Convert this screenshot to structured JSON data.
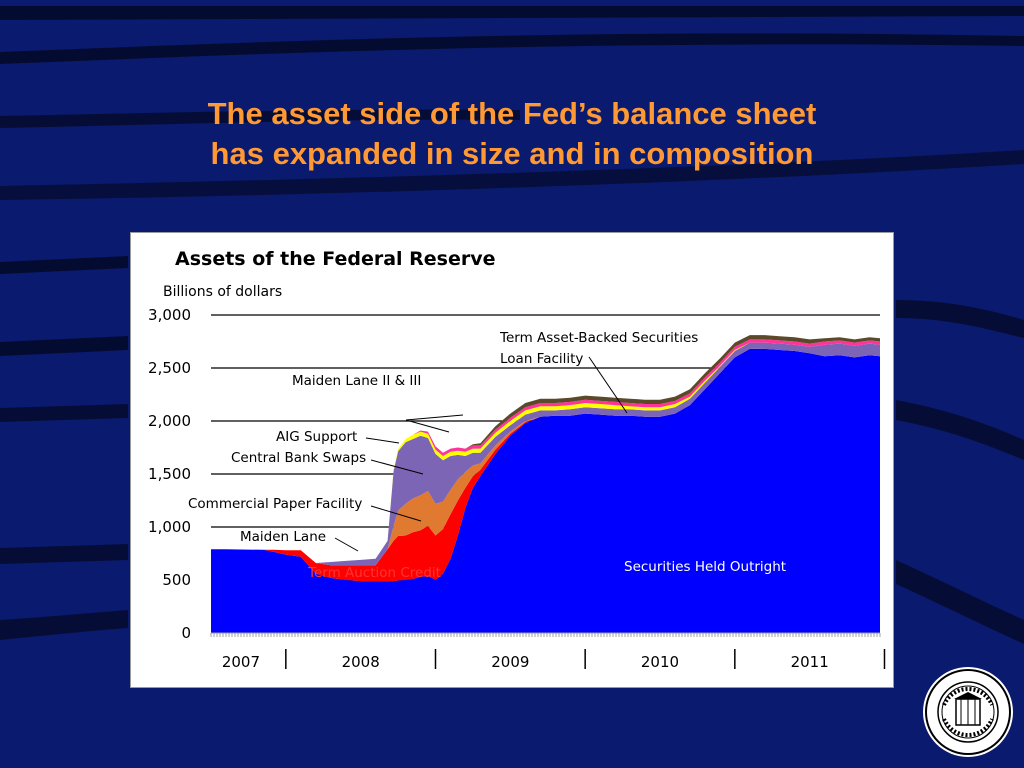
{
  "slide": {
    "title_line1": "The asset side of the Fed’s balance sheet",
    "title_line2": "has expanded in size and in composition"
  },
  "colors": {
    "background": "#0a1a6e",
    "title": "#ff9933",
    "securities": "#0000ff",
    "term_auction": "#ff0000",
    "commercial_paper": "#e07a30",
    "central_bank_swaps": "#7d65b5",
    "aig": "#ffff00",
    "maiden_lane": "#ff3399",
    "talf": "#5a4a2a"
  },
  "chart_data": {
    "type": "area",
    "title": "Assets of the Federal Reserve",
    "ylabel": "Billions of dollars",
    "ylim": [
      0,
      3000
    ],
    "yticks": [
      {
        "value": 0,
        "label": "0"
      },
      {
        "value": 500,
        "label": "500"
      },
      {
        "value": 1000,
        "label": "1,000"
      },
      {
        "value": 1500,
        "label": "1,500"
      },
      {
        "value": 2000,
        "label": "2,000"
      },
      {
        "value": 2500,
        "label": "2,500"
      },
      {
        "value": 3000,
        "label": "3,000"
      }
    ],
    "grid": true,
    "xlim": [
      2007.5,
      2011.97
    ],
    "x_labels": [
      {
        "label": "2007",
        "x": 2007.7
      },
      {
        "label": "2008",
        "x": 2008.5
      },
      {
        "label": "2009",
        "x": 2009.5
      },
      {
        "label": "2010",
        "x": 2010.5
      },
      {
        "label": "2011",
        "x": 2011.5
      }
    ],
    "year_dividers": [
      2008,
      2009,
      2010,
      2011,
      2012
    ],
    "x": [
      2007.5,
      2007.6,
      2007.85,
      2007.92,
      2008.0,
      2008.1,
      2008.2,
      2008.3,
      2008.4,
      2008.5,
      2008.6,
      2008.68,
      2008.72,
      2008.75,
      2008.8,
      2008.85,
      2008.9,
      2008.95,
      2009.0,
      2009.05,
      2009.1,
      2009.15,
      2009.2,
      2009.25,
      2009.3,
      2009.4,
      2009.5,
      2009.6,
      2009.7,
      2009.8,
      2009.9,
      2010.0,
      2010.1,
      2010.2,
      2010.3,
      2010.4,
      2010.5,
      2010.6,
      2010.7,
      2010.8,
      2010.9,
      2011.0,
      2011.1,
      2011.2,
      2011.3,
      2011.4,
      2011.5,
      2011.6,
      2011.7,
      2011.8,
      2011.9,
      2011.97
    ],
    "series": [
      {
        "name": "Securities Held Outright",
        "color_key": "securities",
        "values": [
          790,
          790,
          785,
          765,
          740,
          720,
          560,
          520,
          500,
          490,
          490,
          490,
          490,
          495,
          500,
          510,
          530,
          540,
          500,
          560,
          700,
          920,
          1180,
          1370,
          1480,
          1690,
          1860,
          1980,
          2040,
          2050,
          2050,
          2070,
          2060,
          2050,
          2050,
          2040,
          2040,
          2070,
          2150,
          2300,
          2450,
          2600,
          2680,
          2680,
          2670,
          2660,
          2640,
          2610,
          2620,
          2600,
          2620,
          2610
        ]
      },
      {
        "name": "Term Auction Credit",
        "color_key": "term_auction",
        "values": [
          0,
          0,
          0,
          20,
          40,
          60,
          100,
          120,
          140,
          150,
          150,
          300,
          380,
          420,
          420,
          440,
          440,
          470,
          420,
          420,
          420,
          330,
          190,
          110,
          60,
          40,
          20,
          10,
          0,
          0,
          0,
          0,
          0,
          0,
          0,
          0,
          0,
          0,
          0,
          0,
          0,
          0,
          0,
          0,
          0,
          0,
          0,
          0,
          0,
          0,
          0,
          0
        ]
      },
      {
        "name": "Commercial Paper Facility",
        "color_key": "commercial_paper",
        "values": [
          0,
          0,
          0,
          0,
          0,
          0,
          0,
          0,
          0,
          0,
          0,
          0,
          140,
          240,
          300,
          320,
          330,
          330,
          300,
          260,
          230,
          200,
          150,
          100,
          60,
          40,
          20,
          10,
          0,
          0,
          0,
          0,
          0,
          0,
          0,
          0,
          0,
          0,
          0,
          0,
          0,
          0,
          0,
          0,
          0,
          0,
          0,
          0,
          0,
          0,
          0,
          0
        ]
      },
      {
        "name": "Central Bank Swaps",
        "color_key": "central_bank_swaps",
        "values": [
          0,
          0,
          0,
          0,
          0,
          0,
          0,
          30,
          40,
          50,
          60,
          80,
          520,
          560,
          580,
          560,
          560,
          500,
          470,
          390,
          320,
          230,
          150,
          120,
          100,
          80,
          60,
          60,
          60,
          50,
          60,
          60,
          60,
          60,
          60,
          60,
          60,
          60,
          60,
          60,
          60,
          60,
          60,
          60,
          60,
          60,
          60,
          110,
          110,
          110,
          110,
          110
        ]
      },
      {
        "name": "AIG Support",
        "color_key": "aig",
        "values": [
          0,
          0,
          0,
          0,
          0,
          0,
          0,
          0,
          0,
          0,
          0,
          0,
          10,
          20,
          30,
          40,
          40,
          40,
          40,
          40,
          40,
          40,
          40,
          40,
          40,
          40,
          40,
          40,
          40,
          40,
          40,
          40,
          40,
          40,
          30,
          30,
          30,
          30,
          20,
          20,
          10,
          10,
          0,
          0,
          0,
          0,
          0,
          0,
          0,
          0,
          0,
          0
        ]
      },
      {
        "name": "Maiden Lane II & III",
        "color_key": "maiden_lane",
        "values": [
          0,
          0,
          0,
          0,
          0,
          0,
          0,
          0,
          0,
          0,
          0,
          0,
          0,
          0,
          0,
          0,
          10,
          20,
          30,
          30,
          30,
          30,
          30,
          30,
          30,
          30,
          30,
          30,
          30,
          30,
          30,
          30,
          30,
          30,
          30,
          30,
          30,
          30,
          30,
          30,
          30,
          30,
          30,
          30,
          30,
          30,
          30,
          30,
          30,
          30,
          30,
          30
        ]
      },
      {
        "name": "Term Asset-Backed Securities Loan Facility",
        "color_key": "talf",
        "values": [
          0,
          0,
          0,
          0,
          0,
          0,
          0,
          0,
          0,
          0,
          0,
          0,
          0,
          0,
          0,
          0,
          0,
          0,
          0,
          0,
          0,
          0,
          0,
          10,
          20,
          30,
          40,
          40,
          40,
          40,
          40,
          40,
          40,
          40,
          40,
          40,
          40,
          40,
          40,
          40,
          40,
          40,
          40,
          40,
          40,
          40,
          40,
          30,
          30,
          30,
          30,
          30
        ]
      }
    ],
    "annotations": {
      "talf_line1": "Term Asset-Backed Securities",
      "talf_line2": "Loan Facility",
      "maiden_lane_2_3": "Maiden Lane II & III",
      "aig": "AIG Support",
      "central_bank_swaps": "Central Bank Swaps",
      "commercial_paper": "Commercial Paper Facility",
      "maiden_lane": "Maiden Lane",
      "term_auction": "Term Auction Credit",
      "securities": "Securities Held Outright"
    }
  }
}
